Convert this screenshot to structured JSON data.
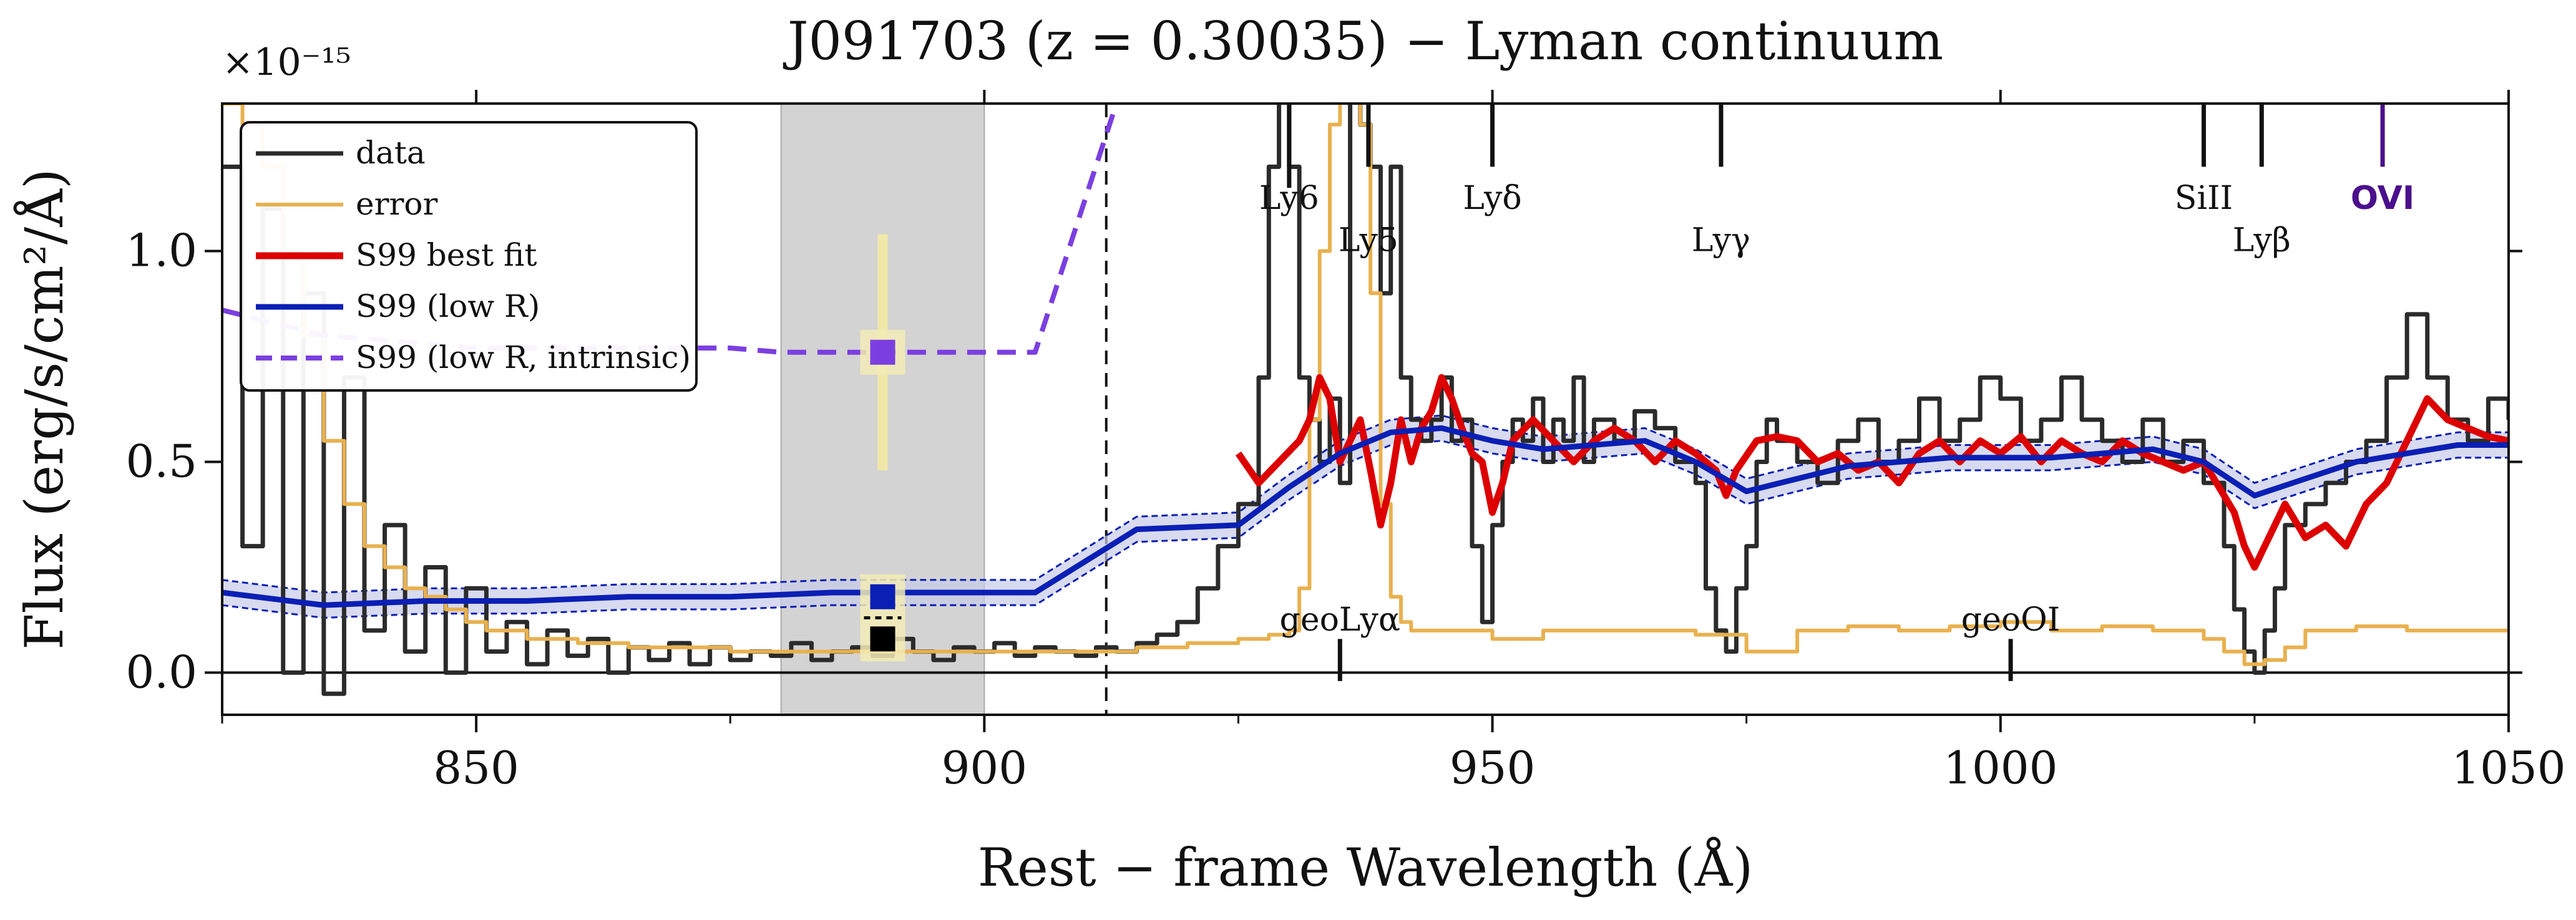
{
  "chart_data": {
    "type": "line",
    "title": "J091703 (z = 0.30035) − Lyman continuum",
    "xlabel": "Rest − frame Wavelength (Å)",
    "ylabel": "Flux (erg/s/cm²/Å)",
    "y_multiplier": "×10⁻¹⁵",
    "xlim": [
      825,
      1050
    ],
    "ylim": [
      -0.1,
      1.35
    ],
    "x_ticks": [
      850,
      900,
      950,
      1000,
      1050
    ],
    "y_ticks": [
      0.0,
      0.5,
      1.0
    ],
    "x_tick_labels": [
      "850",
      "900",
      "950",
      "1000",
      "1050"
    ],
    "y_tick_labels": [
      "0.0",
      "0.5",
      "1.0"
    ],
    "grid": false,
    "legend_position": "top-left",
    "shaded_region": {
      "x_start": 880,
      "x_end": 900,
      "color": "#d3d3d3"
    },
    "lyman_limit_line": 912,
    "colors": {
      "data": "#2b2b2b",
      "error": "#e8b14f",
      "best_fit": "#dd0000",
      "low_r": "#0a1fb4",
      "intrinsic": "#7b3fe0",
      "band": "#c8cbe8"
    },
    "series": [
      {
        "name": "data",
        "style": "step",
        "x": [
          825,
          827,
          829,
          831,
          833,
          835,
          837,
          839,
          841,
          843,
          845,
          847,
          849,
          851,
          853,
          855,
          857,
          859,
          861,
          863,
          865,
          867,
          869,
          871,
          873,
          875,
          877,
          879,
          881,
          883,
          885,
          887,
          889,
          891,
          893,
          895,
          897,
          899,
          901,
          903,
          905,
          907,
          909,
          911,
          913,
          915,
          917,
          919,
          921,
          923,
          925,
          927,
          928,
          929,
          930,
          931,
          932,
          933,
          934,
          935,
          936,
          937,
          938,
          939,
          940,
          941,
          942,
          943,
          944,
          945,
          946,
          947,
          948,
          949,
          950,
          951,
          952,
          953,
          954,
          955,
          956,
          957,
          958,
          959,
          960,
          962,
          964,
          966,
          968,
          970,
          971,
          972,
          973,
          974,
          975,
          976,
          977,
          978,
          980,
          982,
          984,
          986,
          988,
          990,
          992,
          994,
          996,
          998,
          1000,
          1002,
          1004,
          1006,
          1008,
          1010,
          1012,
          1014,
          1016,
          1018,
          1020,
          1022,
          1023,
          1024,
          1025,
          1026,
          1027,
          1028,
          1030,
          1032,
          1034,
          1036,
          1038,
          1040,
          1042,
          1044,
          1046,
          1048,
          1050
        ],
        "y": [
          1.2,
          0.3,
          1.1,
          0.0,
          0.9,
          -0.05,
          0.7,
          0.1,
          0.35,
          0.05,
          0.25,
          0.0,
          0.2,
          0.05,
          0.12,
          0.02,
          0.1,
          0.04,
          0.08,
          0.0,
          0.06,
          0.03,
          0.07,
          0.02,
          0.06,
          0.03,
          0.05,
          0.04,
          0.07,
          0.03,
          0.05,
          0.06,
          0.04,
          0.08,
          0.05,
          0.03,
          0.06,
          0.05,
          0.07,
          0.04,
          0.06,
          0.05,
          0.04,
          0.06,
          0.05,
          0.07,
          0.09,
          0.12,
          0.2,
          0.3,
          0.4,
          0.7,
          1.2,
          1.4,
          1.2,
          0.7,
          0.6,
          0.5,
          0.65,
          0.45,
          1.4,
          1.3,
          1.2,
          0.9,
          1.2,
          0.7,
          0.6,
          0.55,
          0.6,
          0.7,
          0.55,
          0.6,
          0.3,
          0.12,
          0.35,
          0.5,
          0.6,
          0.55,
          0.65,
          0.5,
          0.6,
          0.55,
          0.7,
          0.5,
          0.6,
          0.55,
          0.62,
          0.58,
          0.5,
          0.45,
          0.2,
          0.1,
          0.05,
          0.2,
          0.3,
          0.5,
          0.6,
          0.55,
          0.5,
          0.45,
          0.55,
          0.6,
          0.5,
          0.55,
          0.65,
          0.55,
          0.6,
          0.7,
          0.65,
          0.55,
          0.6,
          0.7,
          0.6,
          0.55,
          0.5,
          0.6,
          0.5,
          0.55,
          0.45,
          0.3,
          0.15,
          0.05,
          0.0,
          0.1,
          0.2,
          0.35,
          0.4,
          0.45,
          0.5,
          0.55,
          0.7,
          0.85,
          0.7,
          0.6,
          0.55,
          0.65,
          0.6
        ]
      },
      {
        "name": "error",
        "style": "step",
        "x": [
          825,
          827,
          829,
          831,
          833,
          835,
          837,
          839,
          841,
          843,
          845,
          847,
          849,
          851,
          855,
          860,
          865,
          870,
          875,
          880,
          885,
          890,
          895,
          900,
          905,
          910,
          915,
          920,
          925,
          928,
          930,
          931,
          932,
          933,
          934,
          935,
          936,
          937,
          938,
          939,
          940,
          941,
          942,
          944,
          946,
          950,
          955,
          960,
          965,
          970,
          975,
          980,
          985,
          990,
          995,
          1000,
          1005,
          1010,
          1015,
          1020,
          1022,
          1024,
          1026,
          1028,
          1030,
          1035,
          1040,
          1045,
          1050
        ],
        "y": [
          1.35,
          1.3,
          1.2,
          1.0,
          0.8,
          0.55,
          0.4,
          0.3,
          0.25,
          0.2,
          0.18,
          0.15,
          0.12,
          0.1,
          0.08,
          0.07,
          0.06,
          0.06,
          0.05,
          0.05,
          0.05,
          0.05,
          0.05,
          0.05,
          0.05,
          0.05,
          0.06,
          0.07,
          0.08,
          0.09,
          0.1,
          0.2,
          0.6,
          1.0,
          1.3,
          1.4,
          1.4,
          1.3,
          0.9,
          0.4,
          0.18,
          0.12,
          0.1,
          0.1,
          0.1,
          0.08,
          0.1,
          0.1,
          0.1,
          0.09,
          0.05,
          0.1,
          0.11,
          0.1,
          0.11,
          0.12,
          0.1,
          0.11,
          0.1,
          0.08,
          0.05,
          0.02,
          0.03,
          0.06,
          0.1,
          0.11,
          0.1,
          0.1,
          0.1
        ]
      },
      {
        "name": "S99 best fit",
        "style": "line",
        "x": [
          925,
          927,
          929,
          931,
          932,
          933,
          934,
          935,
          936,
          937,
          938,
          939,
          940,
          941,
          942,
          943,
          944,
          945,
          946,
          947,
          948,
          949,
          950,
          951,
          952,
          954,
          956,
          958,
          960,
          962,
          964,
          966,
          968,
          970,
          972,
          973,
          974,
          976,
          978,
          980,
          982,
          984,
          986,
          988,
          990,
          992,
          994,
          996,
          998,
          1000,
          1002,
          1004,
          1006,
          1008,
          1010,
          1012,
          1014,
          1016,
          1018,
          1020,
          1022,
          1023,
          1024,
          1025,
          1026,
          1027,
          1028,
          1030,
          1032,
          1034,
          1036,
          1038,
          1040,
          1042,
          1044,
          1046,
          1048,
          1050
        ],
        "y": [
          0.52,
          0.45,
          0.5,
          0.55,
          0.6,
          0.7,
          0.65,
          0.5,
          0.55,
          0.6,
          0.48,
          0.35,
          0.45,
          0.6,
          0.5,
          0.58,
          0.62,
          0.7,
          0.65,
          0.58,
          0.52,
          0.5,
          0.38,
          0.45,
          0.55,
          0.6,
          0.55,
          0.5,
          0.55,
          0.58,
          0.55,
          0.5,
          0.55,
          0.52,
          0.48,
          0.42,
          0.48,
          0.55,
          0.56,
          0.55,
          0.5,
          0.52,
          0.48,
          0.5,
          0.45,
          0.52,
          0.55,
          0.5,
          0.55,
          0.52,
          0.56,
          0.5,
          0.55,
          0.52,
          0.5,
          0.55,
          0.52,
          0.5,
          0.48,
          0.5,
          0.42,
          0.38,
          0.3,
          0.25,
          0.3,
          0.35,
          0.4,
          0.32,
          0.35,
          0.3,
          0.4,
          0.45,
          0.55,
          0.65,
          0.6,
          0.58,
          0.56,
          0.55
        ]
      },
      {
        "name": "S99 (low R)",
        "style": "line",
        "x": [
          825,
          835,
          845,
          855,
          865,
          875,
          885,
          895,
          905,
          915,
          925,
          930,
          935,
          940,
          945,
          950,
          955,
          960,
          965,
          970,
          975,
          980,
          985,
          990,
          995,
          1000,
          1005,
          1010,
          1015,
          1020,
          1025,
          1030,
          1035,
          1040,
          1045,
          1050
        ],
        "y": [
          0.19,
          0.16,
          0.17,
          0.17,
          0.18,
          0.18,
          0.19,
          0.19,
          0.19,
          0.34,
          0.35,
          0.44,
          0.52,
          0.57,
          0.58,
          0.55,
          0.53,
          0.54,
          0.55,
          0.5,
          0.43,
          0.46,
          0.49,
          0.5,
          0.51,
          0.51,
          0.51,
          0.52,
          0.53,
          0.5,
          0.42,
          0.46,
          0.5,
          0.52,
          0.54,
          0.54
        ]
      },
      {
        "name": "S99 (low R, intrinsic)",
        "style": "dashed",
        "x": [
          825,
          830,
          835,
          840,
          845,
          850,
          855,
          860,
          865,
          870,
          875,
          880,
          885,
          890,
          895,
          900,
          905,
          913
        ],
        "y": [
          0.86,
          0.83,
          0.8,
          0.79,
          0.78,
          0.77,
          0.77,
          0.77,
          0.77,
          0.77,
          0.77,
          0.76,
          0.76,
          0.76,
          0.76,
          0.76,
          0.76,
          1.35
        ]
      }
    ],
    "band_low_r": {
      "offset": 0.03
    },
    "points": [
      {
        "label": "intrinsic",
        "x": 890,
        "y": 0.76,
        "yerr": 0.28,
        "color": "#7b3fe0"
      },
      {
        "label": "model",
        "x": 890,
        "y": 0.18,
        "yerr": 0.03,
        "color": "#0a1fb4"
      },
      {
        "label": "data",
        "x": 890,
        "y": 0.08,
        "yerr": 0.03,
        "color": "#000000"
      }
    ],
    "line_markers": [
      {
        "label": "Ly6",
        "x": 930,
        "y_label": 1.1,
        "tick_from": 1.15,
        "tick_to": 1.35,
        "color": "#111111"
      },
      {
        "label": "Ly5",
        "x": 937.8,
        "y_label": 1.0,
        "tick_from": 1.2,
        "tick_to": 1.35,
        "color": "#111111"
      },
      {
        "label": "Lyδ",
        "x": 950,
        "y_label": 1.1,
        "tick_from": 1.2,
        "tick_to": 1.35,
        "color": "#111111"
      },
      {
        "label": "Lyγ",
        "x": 972.5,
        "y_label": 1.0,
        "tick_from": 1.2,
        "tick_to": 1.35,
        "color": "#111111"
      },
      {
        "label": "SiII",
        "x": 1020,
        "y_label": 1.1,
        "tick_from": 1.2,
        "tick_to": 1.35,
        "color": "#111111"
      },
      {
        "label": "Lyβ",
        "x": 1025.7,
        "y_label": 1.0,
        "tick_from": 1.2,
        "tick_to": 1.35,
        "color": "#111111"
      },
      {
        "label": "OVI",
        "x": 1037.6,
        "y_label": 1.1,
        "tick_from": 1.2,
        "tick_to": 1.35,
        "color": "#4b0f8c"
      },
      {
        "label": "geoLyα",
        "x": 935,
        "y_label": 0.1,
        "tick_from": -0.02,
        "tick_to": 0.08,
        "color": "#111111"
      },
      {
        "label": "geoOI",
        "x": 1001,
        "y_label": 0.1,
        "tick_from": -0.02,
        "tick_to": 0.08,
        "color": "#111111"
      }
    ]
  }
}
